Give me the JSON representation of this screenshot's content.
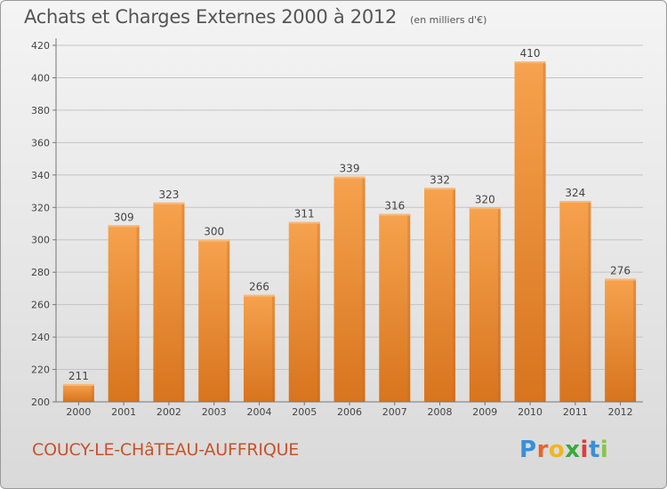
{
  "chart_data": {
    "type": "bar",
    "title": "Achats et Charges Externes 2000 à 2012",
    "subtitle": "(en milliers d'€)",
    "categories": [
      "2000",
      "2001",
      "2002",
      "2003",
      "2004",
      "2005",
      "2006",
      "2007",
      "2008",
      "2009",
      "2010",
      "2011",
      "2012"
    ],
    "values": [
      211,
      309,
      323,
      300,
      266,
      311,
      339,
      316,
      332,
      320,
      410,
      324,
      276
    ],
    "ylim": [
      200,
      420
    ],
    "yticks": [
      200,
      220,
      240,
      260,
      280,
      300,
      320,
      340,
      360,
      380,
      400,
      420
    ],
    "grid": true,
    "bar_color": "#f0913a",
    "bar_color_dark": "#d9721c"
  },
  "footer": {
    "commune": "COUCY-LE-CHâTEAU-AUFFRIQUE"
  },
  "brand": {
    "letters": [
      {
        "ch": "P",
        "color": "#3a8fd8"
      },
      {
        "ch": "r",
        "color": "#e8622a"
      },
      {
        "ch": "o",
        "color": "#f2b51e"
      },
      {
        "ch": "x",
        "color": "#3aaa3a"
      },
      {
        "ch": "i",
        "color": "#e23a3a"
      },
      {
        "ch": "t",
        "color": "#3a8fd8"
      },
      {
        "ch": "i",
        "color": "#8bc34a"
      }
    ]
  }
}
